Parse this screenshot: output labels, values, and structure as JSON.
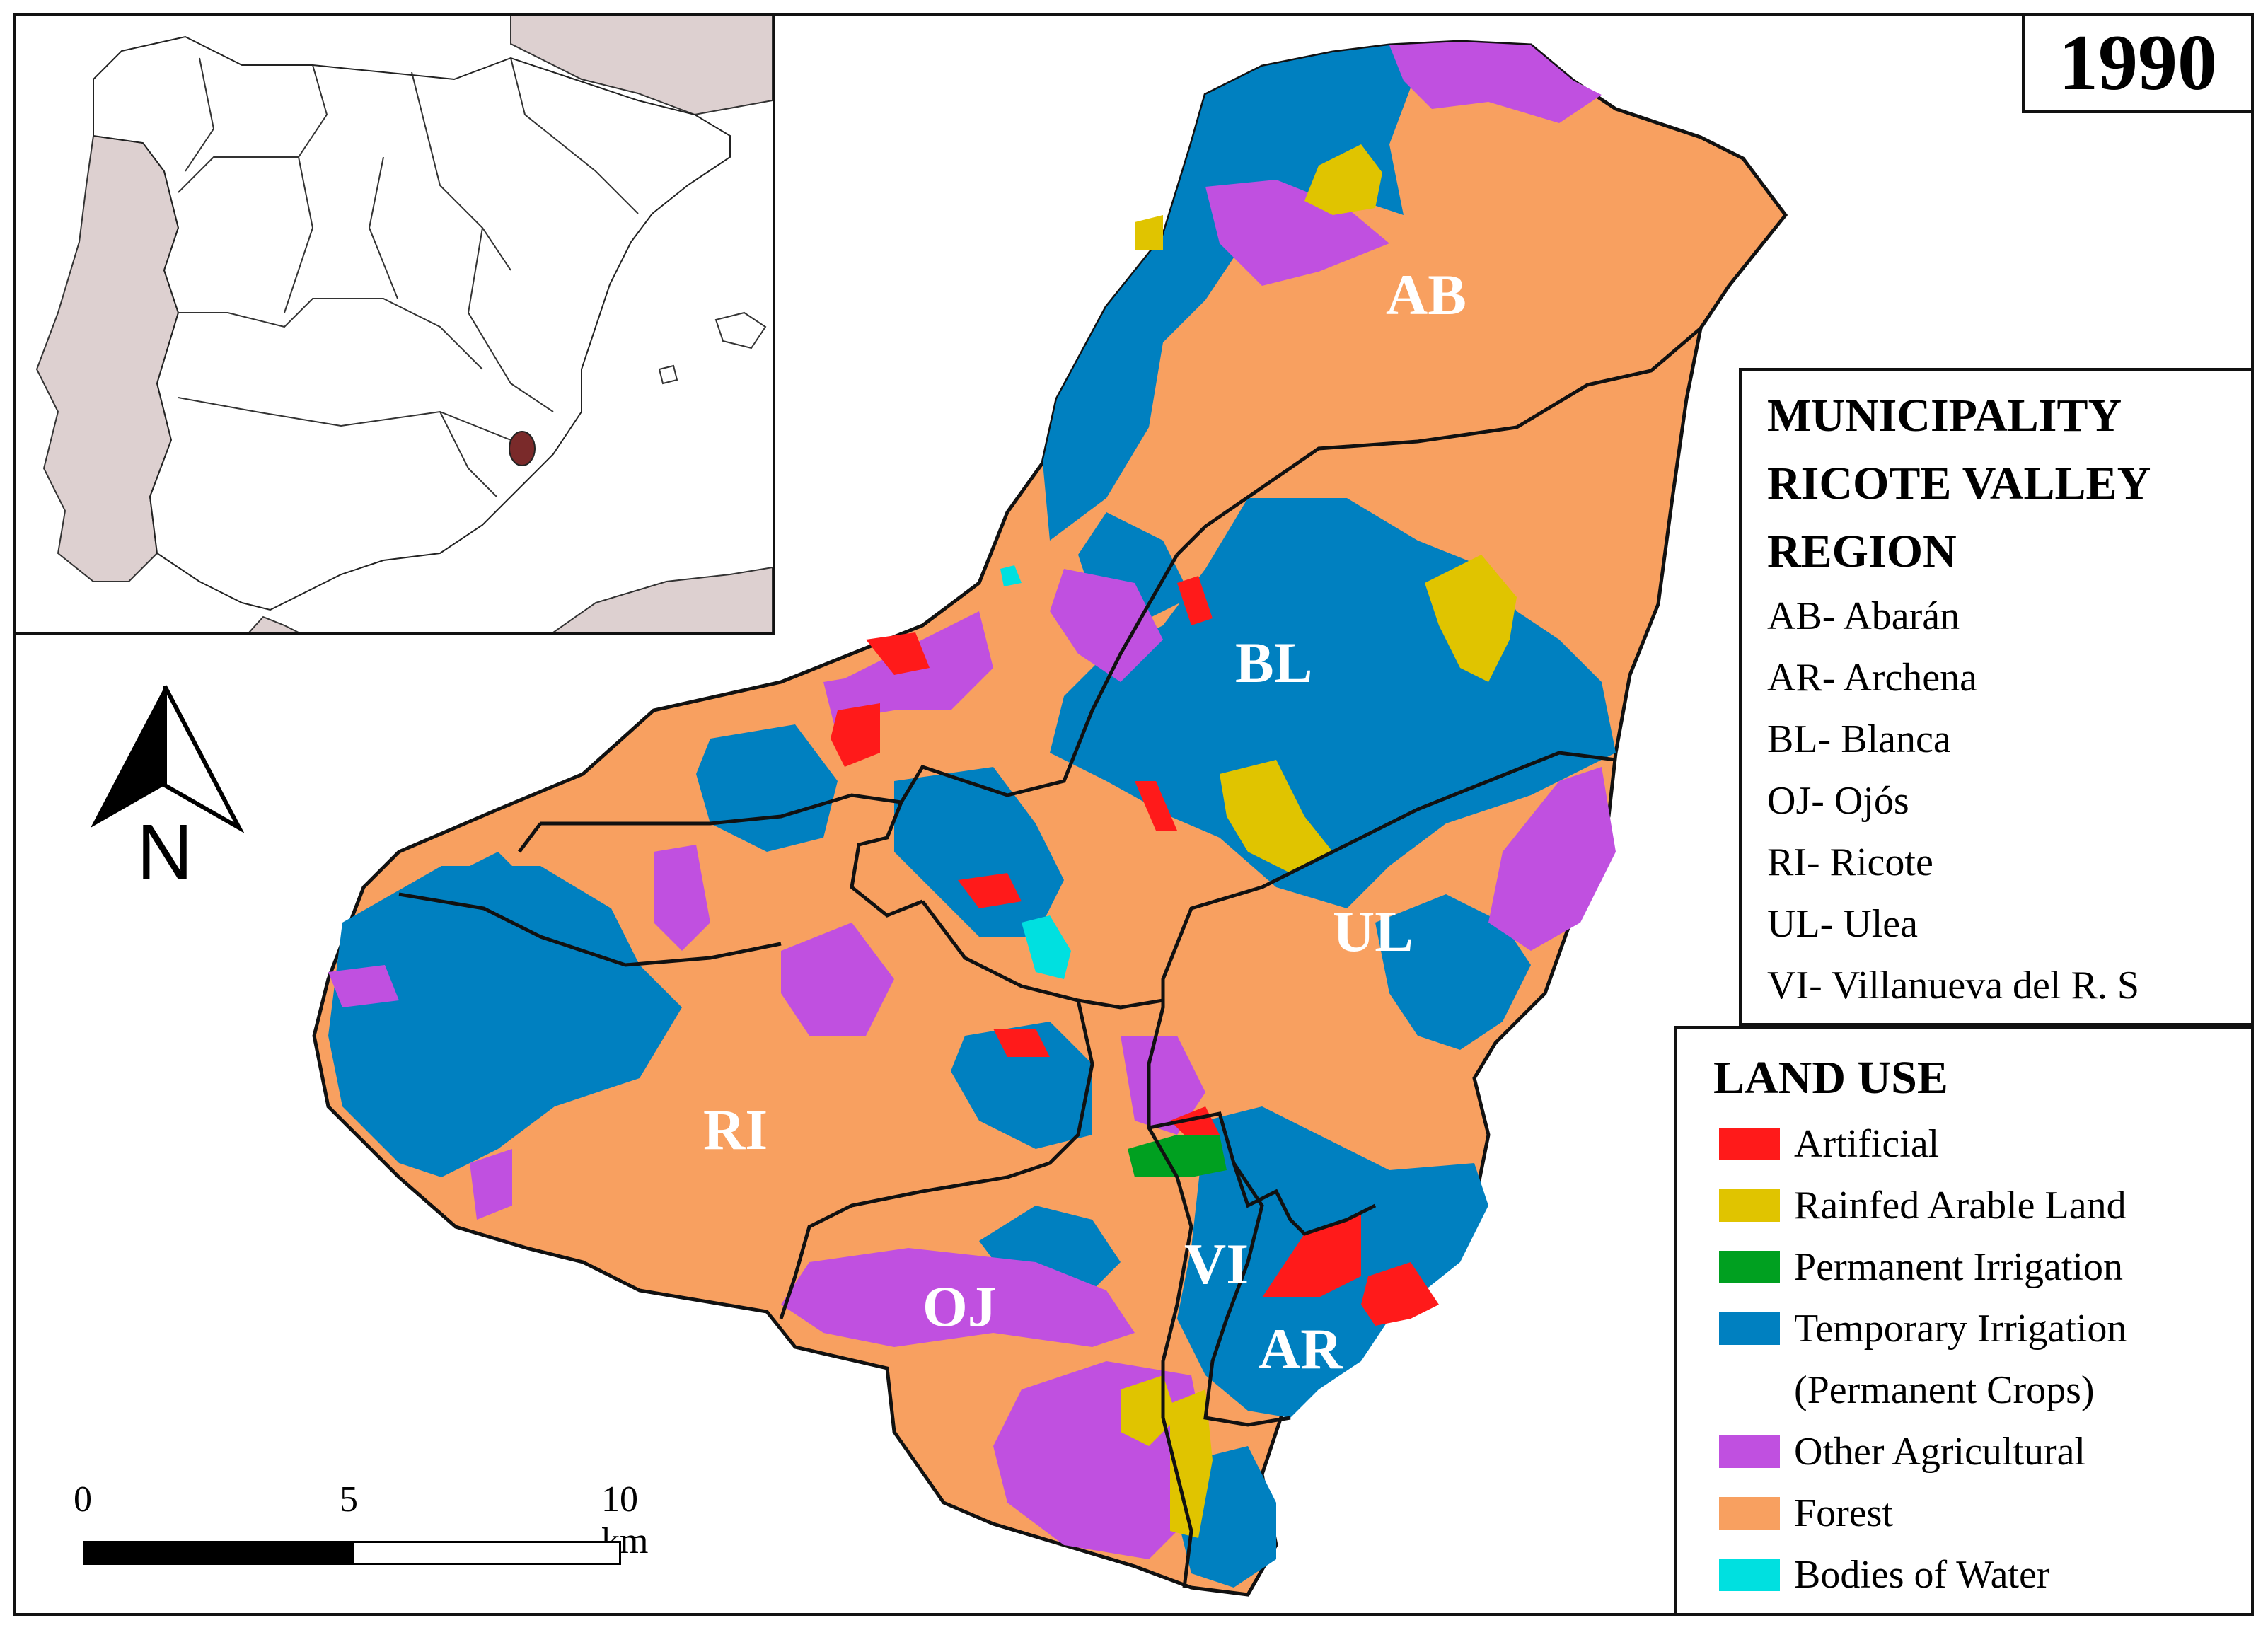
{
  "year": "1990",
  "colors": {
    "artificial": "#ff1a1a",
    "rainfed": "#e0c400",
    "permanent_irrigation": "#00a020",
    "temporary_irrigation": "#0080c0",
    "other_agricultural": "#c050e0",
    "forest": "#f8a060",
    "water": "#00e0e0",
    "other_countries": "#ddd0d0"
  },
  "municipality_legend": {
    "title_lines": [
      "MUNICIPALITY",
      "RICOTE VALLEY",
      "REGION"
    ],
    "items": [
      "AB- Abarán",
      "AR- Archena",
      "BL- Blanca",
      "OJ- Ojós",
      "RI- Ricote",
      "UL- Ulea",
      "VI- Villanueva del R. S"
    ]
  },
  "land_use_legend": {
    "title": "LAND USE",
    "items": [
      {
        "label": "Artificial",
        "color": "#ff1a1a"
      },
      {
        "label": "Rainfed Arable Land",
        "color": "#e0c400"
      },
      {
        "label": "Permanent Irrigation",
        "color": "#00a020"
      },
      {
        "label": "Temporary Irrigation\n(Permanent Crops)",
        "color": "#0080c0"
      },
      {
        "label": "Other Agricultural",
        "color": "#c050e0"
      },
      {
        "label": "Forest",
        "color": "#f8a060"
      },
      {
        "label": "Bodies of Water",
        "color": "#00e0e0"
      }
    ]
  },
  "region_labels": [
    "AB",
    "BL",
    "UL",
    "RI",
    "OJ",
    "VI",
    "AR"
  ],
  "north_label": "N",
  "scale": {
    "labels": [
      "0",
      "5",
      "10 km"
    ]
  }
}
